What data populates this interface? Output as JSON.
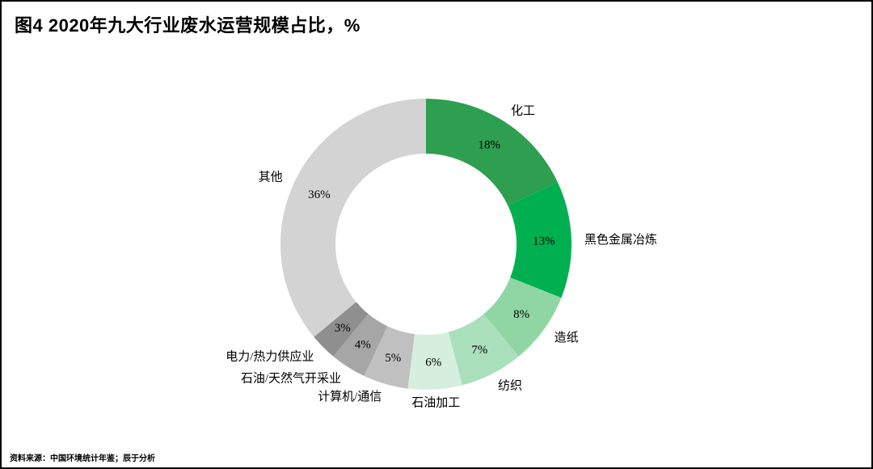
{
  "page": {
    "title": "图4 2020年九大行业废水运营规模占比，%",
    "source": "资料来源：中国环境统计年鉴；辰于分析"
  },
  "chart_data": {
    "type": "pie",
    "subtype": "donut",
    "title": "图4 2020年九大行业废水运营规模占比，%",
    "unit": "%",
    "start_angle_deg": 0,
    "direction": "clockwise",
    "legend_position": "none",
    "segments": [
      {
        "id": "chemical",
        "label": "化工",
        "value": 18,
        "value_label": "18%",
        "color": "#2e9e50"
      },
      {
        "id": "ferrous-metal-smelting",
        "label": "黑色金属冶炼",
        "value": 13,
        "value_label": "13%",
        "color": "#00b050"
      },
      {
        "id": "papermaking",
        "label": "造纸",
        "value": 8,
        "value_label": "8%",
        "color": "#90d6a4"
      },
      {
        "id": "textile",
        "label": "纺织",
        "value": 7,
        "value_label": "7%",
        "color": "#aadfbc"
      },
      {
        "id": "petroleum-processing",
        "label": "石油加工",
        "value": 6,
        "value_label": "6%",
        "color": "#d6eedd"
      },
      {
        "id": "computer-communication",
        "label": "计算机/通信",
        "value": 5,
        "value_label": "5%",
        "color": "#c0c0c0"
      },
      {
        "id": "oil-gas-extraction",
        "label": "石油/天然气开采业",
        "value": 4,
        "value_label": "4%",
        "color": "#a6a6a6"
      },
      {
        "id": "power-heat-supply",
        "label": "电力/热力供应业",
        "value": 3,
        "value_label": "3%",
        "color": "#8f8f8f"
      },
      {
        "id": "others",
        "label": "其他",
        "value": 36,
        "value_label": "36%",
        "color": "#d3d3d3"
      }
    ],
    "source_note": "资料来源：中国环境统计年鉴；辰于分析"
  }
}
